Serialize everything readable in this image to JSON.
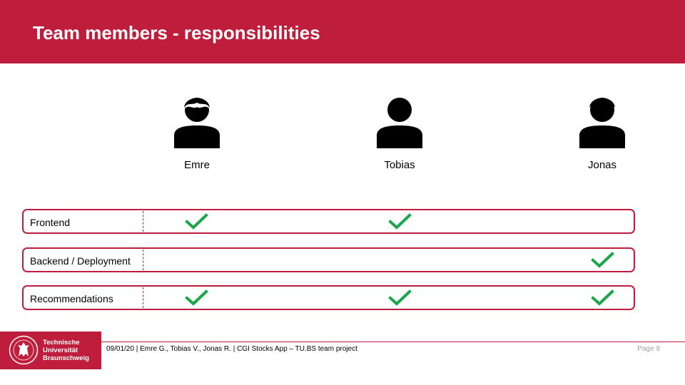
{
  "slide": {
    "title": "Team members - responsibilities"
  },
  "team": [
    {
      "name": "Emre",
      "icon": "person-with-hair-icon"
    },
    {
      "name": "Tobias",
      "icon": "person-icon"
    },
    {
      "name": "Jonas",
      "icon": "person-with-hair-icon"
    }
  ],
  "responsibilities": [
    {
      "label": "Frontend",
      "Emre": true,
      "Tobias": true,
      "Jonas": false
    },
    {
      "label": "Backend / Deployment",
      "Emre": false,
      "Tobias": false,
      "Jonas": true
    },
    {
      "label": "Recommendations",
      "Emre": true,
      "Tobias": true,
      "Jonas": true
    }
  ],
  "footer": {
    "text": "09/01/20 | Emre G., Tobias V., Jonas R. | CGI Stocks App – TU.BS team project",
    "page": "Page 9",
    "logo_lines": [
      "Technische",
      "Universität",
      "Braunschweig"
    ]
  },
  "colors": {
    "brand_red": "#be1e3c",
    "check_green": "#1aa64a"
  }
}
